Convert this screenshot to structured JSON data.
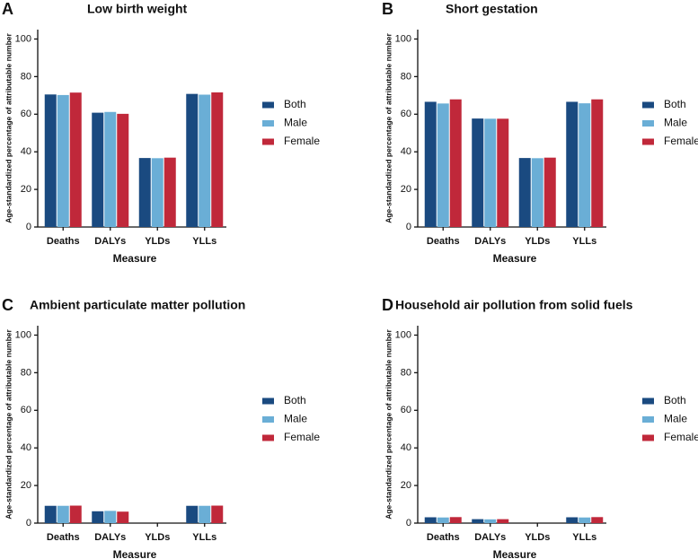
{
  "chart_data": [
    {
      "type": "bar",
      "panel": "A",
      "title": "Low birth weight",
      "xlabel": "Measure",
      "ylabel": "Age-standardized percentage of attributable number",
      "categories": [
        "Deaths",
        "DALYs",
        "YLDs",
        "YLLs"
      ],
      "series": [
        {
          "name": "Both",
          "color": "#1a4a80",
          "values": [
            70.5,
            60.8,
            36.7,
            70.8
          ]
        },
        {
          "name": "Male",
          "color": "#6aaed6",
          "values": [
            70.2,
            61.2,
            36.6,
            70.4
          ]
        },
        {
          "name": "Female",
          "color": "#c0283a",
          "values": [
            71.5,
            60.2,
            36.9,
            71.6
          ]
        }
      ],
      "ylim": [
        0,
        105
      ],
      "yticks": [
        0,
        20,
        40,
        60,
        80,
        100
      ]
    },
    {
      "type": "bar",
      "panel": "B",
      "title": "Short gestation",
      "xlabel": "Measure",
      "ylabel": "Age-standardized percentage of attributable number",
      "categories": [
        "Deaths",
        "DALYs",
        "YLDs",
        "YLLs"
      ],
      "series": [
        {
          "name": "Both",
          "color": "#1a4a80",
          "values": [
            66.6,
            57.7,
            36.7,
            66.6
          ]
        },
        {
          "name": "Male",
          "color": "#6aaed6",
          "values": [
            65.7,
            57.6,
            36.6,
            65.8
          ]
        },
        {
          "name": "Female",
          "color": "#c0283a",
          "values": [
            67.9,
            57.6,
            36.9,
            67.9
          ]
        }
      ],
      "ylim": [
        0,
        105
      ],
      "yticks": [
        0,
        20,
        40,
        60,
        80,
        100
      ]
    },
    {
      "type": "bar",
      "panel": "C",
      "title": "Ambient particulate matter pollution",
      "xlabel": "Measure",
      "ylabel": "Age-standardized percentage of attributable number",
      "categories": [
        "Deaths",
        "DALYs",
        "YLDs",
        "YLLs"
      ],
      "series": [
        {
          "name": "Both",
          "color": "#1a4a80",
          "values": [
            9.2,
            6.3,
            0,
            9.2
          ]
        },
        {
          "name": "Male",
          "color": "#6aaed6",
          "values": [
            9.2,
            6.5,
            0,
            9.2
          ]
        },
        {
          "name": "Female",
          "color": "#c0283a",
          "values": [
            9.3,
            6.1,
            0,
            9.3
          ]
        }
      ],
      "ylim": [
        0,
        105
      ],
      "yticks": [
        0,
        20,
        40,
        60,
        80,
        100
      ]
    },
    {
      "type": "bar",
      "panel": "D",
      "title": "Household air pollution from solid fuels",
      "xlabel": "Measure",
      "ylabel": "Age-standardized percentage of attributable number",
      "categories": [
        "Deaths",
        "DALYs",
        "YLDs",
        "YLLs"
      ],
      "series": [
        {
          "name": "Both",
          "color": "#1a4a80",
          "values": [
            3.1,
            2.1,
            0,
            3.1
          ]
        },
        {
          "name": "Male",
          "color": "#6aaed6",
          "values": [
            3.0,
            2.0,
            0,
            3.0
          ]
        },
        {
          "name": "Female",
          "color": "#c0283a",
          "values": [
            3.2,
            2.1,
            0,
            3.2
          ]
        }
      ],
      "ylim": [
        0,
        105
      ],
      "yticks": [
        0,
        20,
        40,
        60,
        80,
        100
      ]
    }
  ]
}
